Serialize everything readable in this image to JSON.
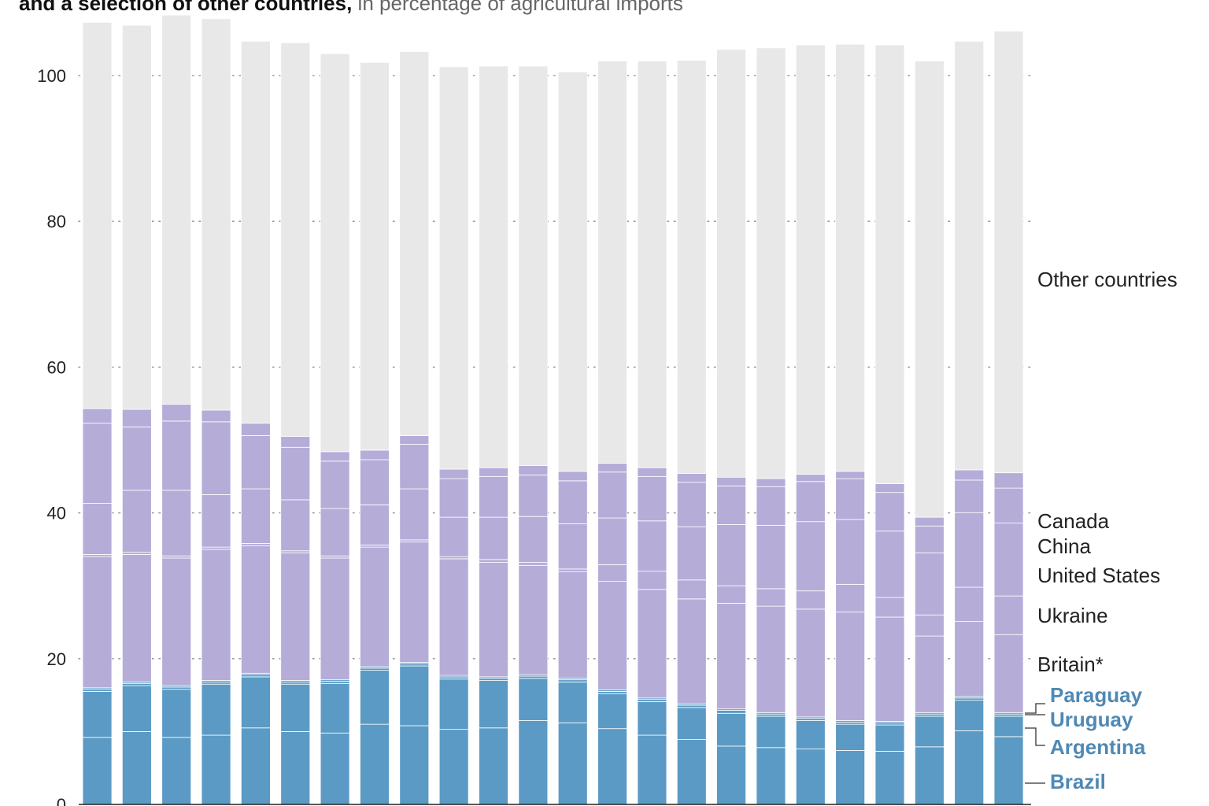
{
  "title": {
    "bold": "and a selection of other countries,",
    "light": "in percentage of agricultural imports"
  },
  "colors": {
    "blue": "#5b9ac4",
    "purple": "#b6acd8",
    "grey": "#e8e8e8",
    "label_blue": "#4f89b4"
  },
  "chart_data": {
    "type": "bar",
    "stacked": true,
    "ylim": [
      0,
      100
    ],
    "yticks": [
      0,
      20,
      40,
      60,
      80,
      100
    ],
    "grid": "dotted horizontal",
    "bar_count": 24,
    "series": [
      {
        "name": "Brazil",
        "color": "blue",
        "values": [
          9.2,
          10.0,
          9.2,
          9.5,
          10.5,
          10.0,
          9.8,
          11.0,
          10.8,
          10.3,
          10.5,
          11.5,
          11.2,
          10.4,
          9.5,
          8.9,
          8.0,
          7.8,
          7.6,
          7.4,
          7.3,
          7.9,
          10.1,
          9.3
        ]
      },
      {
        "name": "Argentina",
        "color": "blue",
        "values": [
          6.3,
          6.3,
          6.6,
          7.0,
          7.0,
          6.5,
          6.8,
          7.4,
          8.2,
          6.9,
          6.5,
          5.8,
          5.6,
          4.8,
          4.6,
          4.4,
          4.5,
          4.3,
          3.9,
          3.6,
          3.6,
          4.2,
          4.2,
          2.8
        ]
      },
      {
        "name": "Uruguay",
        "color": "blue",
        "values": [
          0.3,
          0.3,
          0.3,
          0.3,
          0.3,
          0.3,
          0.3,
          0.3,
          0.3,
          0.3,
          0.3,
          0.3,
          0.3,
          0.3,
          0.3,
          0.3,
          0.4,
          0.3,
          0.3,
          0.3,
          0.3,
          0.3,
          0.3,
          0.3
        ]
      },
      {
        "name": "Paraguay",
        "color": "blue",
        "values": [
          0.2,
          0.2,
          0.2,
          0.2,
          0.2,
          0.2,
          0.2,
          0.2,
          0.2,
          0.2,
          0.2,
          0.2,
          0.2,
          0.2,
          0.2,
          0.2,
          0.2,
          0.2,
          0.2,
          0.2,
          0.2,
          0.2,
          0.2,
          0.2
        ]
      },
      {
        "name": "Britain*",
        "color": "purple",
        "values": [
          18.0,
          17.5,
          17.5,
          18.0,
          17.5,
          17.5,
          16.7,
          16.4,
          16.5,
          16.0,
          15.7,
          15.0,
          14.6,
          14.9,
          14.9,
          14.4,
          14.5,
          14.6,
          14.8,
          14.9,
          14.3,
          10.5,
          10.3,
          10.7
        ]
      },
      {
        "name": "Ukraine",
        "color": "purple",
        "values": [
          0.3,
          0.3,
          0.3,
          0.3,
          0.3,
          0.3,
          0.3,
          0.3,
          0.3,
          0.3,
          0.4,
          0.4,
          0.4,
          2.3,
          2.5,
          2.6,
          2.4,
          2.4,
          2.5,
          3.8,
          2.7,
          2.9,
          4.7,
          5.3
        ]
      },
      {
        "name": "United States",
        "color": "purple",
        "values": [
          7.0,
          8.5,
          9.0,
          7.2,
          7.5,
          7.0,
          6.5,
          5.5,
          7.0,
          5.4,
          5.8,
          6.3,
          6.2,
          6.4,
          6.9,
          7.3,
          8.4,
          8.7,
          9.5,
          8.9,
          9.1,
          8.5,
          10.2,
          10.0
        ]
      },
      {
        "name": "China",
        "color": "purple",
        "values": [
          11.0,
          8.7,
          9.5,
          10.0,
          7.3,
          7.2,
          6.5,
          6.2,
          6.1,
          5.3,
          5.6,
          5.7,
          5.9,
          6.3,
          6.1,
          6.1,
          5.3,
          5.3,
          5.5,
          5.6,
          5.3,
          3.7,
          4.5,
          4.8
        ]
      },
      {
        "name": "Canada",
        "color": "purple",
        "values": [
          2.0,
          2.4,
          2.3,
          1.6,
          1.7,
          1.5,
          1.3,
          1.3,
          1.2,
          1.3,
          1.2,
          1.3,
          1.3,
          1.2,
          1.2,
          1.2,
          1.2,
          1.1,
          1.0,
          1.0,
          1.2,
          1.2,
          1.4,
          2.1
        ]
      },
      {
        "name": "Other countries",
        "color": "grey",
        "values": [
          53.0,
          52.7,
          53.4,
          53.7,
          52.4,
          54.0,
          54.6,
          53.2,
          52.7,
          55.2,
          55.1,
          54.8,
          54.8,
          55.2,
          55.8,
          56.7,
          58.7,
          59.1,
          58.9,
          58.6,
          60.2,
          62.6,
          58.8,
          60.6
        ]
      }
    ]
  },
  "legend_labels": {
    "other": "Other countries",
    "canada": "Canada",
    "china": "China",
    "us": "United States",
    "ukraine": "Ukraine",
    "britain": "Britain*",
    "paraguay": "Paraguay",
    "uruguay": "Uruguay",
    "argentina": "Argentina",
    "brazil": "Brazil"
  }
}
